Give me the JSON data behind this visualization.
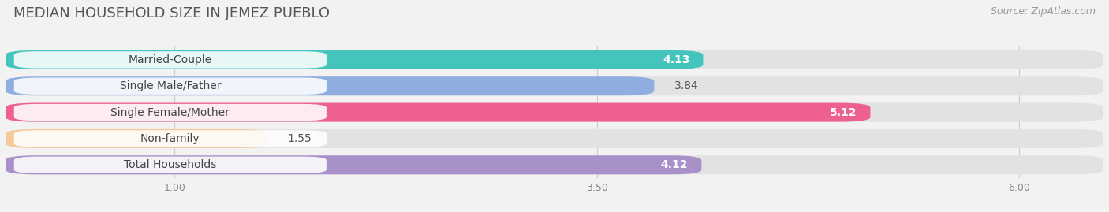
{
  "title": "MEDIAN HOUSEHOLD SIZE IN JEMEZ PUEBLO",
  "source": "Source: ZipAtlas.com",
  "categories": [
    "Married-Couple",
    "Single Male/Father",
    "Single Female/Mother",
    "Non-family",
    "Total Households"
  ],
  "values": [
    4.13,
    3.84,
    5.12,
    1.55,
    4.12
  ],
  "bar_colors": [
    "#45C4BE",
    "#8FAEE0",
    "#EE6090",
    "#F5C99A",
    "#A890C8"
  ],
  "value_inside": [
    true,
    false,
    true,
    false,
    true
  ],
  "xlim_data": [
    0.0,
    6.5
  ],
  "xticks": [
    1.0,
    3.5,
    6.0
  ],
  "background_color": "#f2f2f2",
  "bar_bg_color": "#e2e2e2",
  "title_fontsize": 13,
  "source_fontsize": 9,
  "label_fontsize": 10,
  "value_fontsize": 10
}
